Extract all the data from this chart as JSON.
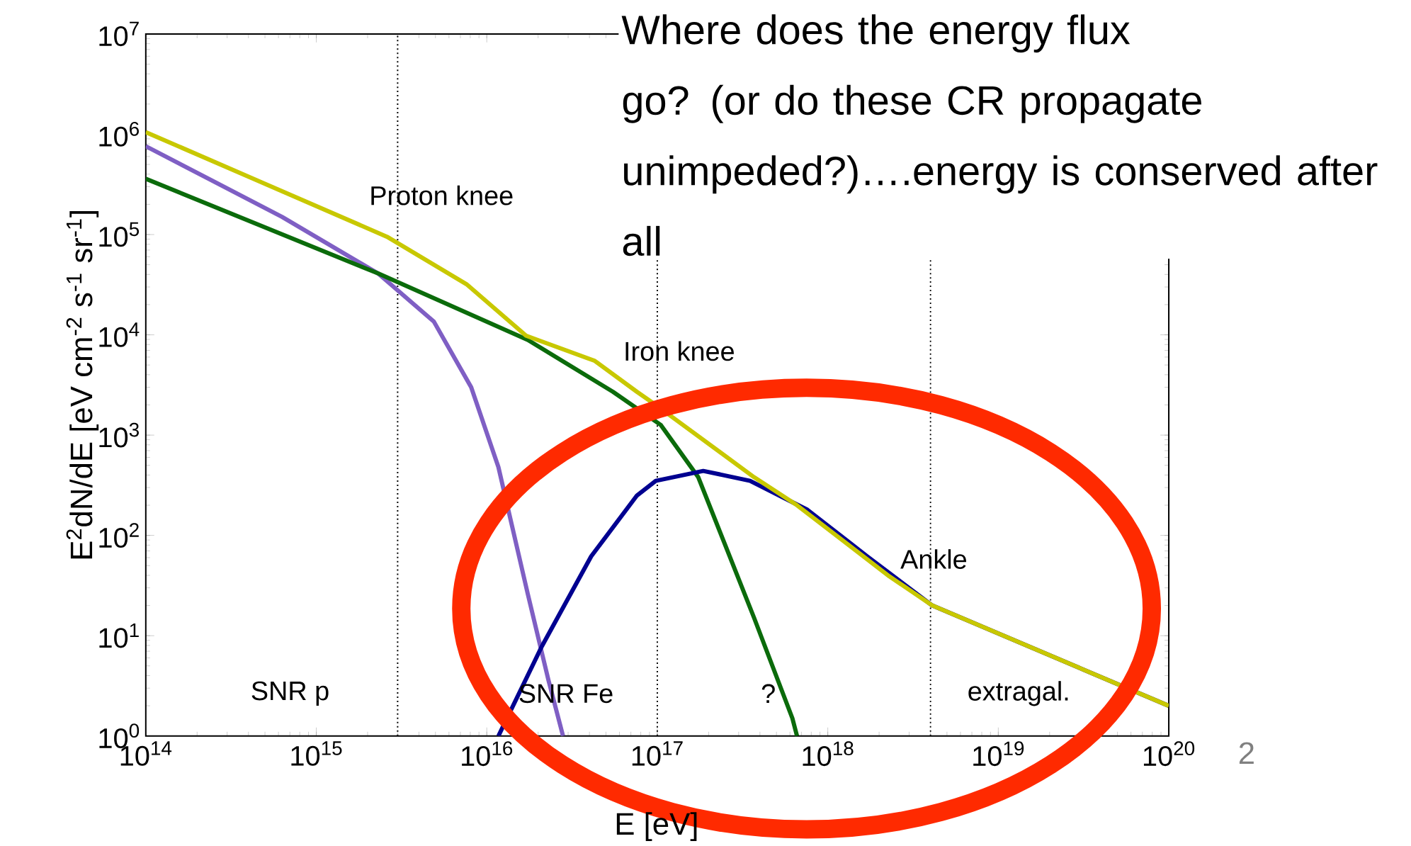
{
  "chart_data": {
    "type": "line",
    "log": "xy",
    "xlabel": "E [eV]",
    "ylabel": "E$^{2}$dN/dE [eV cm$^{-2}$ s$^{-1}$ sr$^{-1}$]",
    "xlim": [
      100000000000000.0,
      1e+20
    ],
    "ylim": [
      1,
      10000000.0
    ],
    "xticks": [
      {
        "value": 100000000000000.0,
        "label": "10$^{14}$"
      },
      {
        "value": 1000000000000000.0,
        "label": "10$^{15}$"
      },
      {
        "value": 1e+16,
        "label": "10$^{16}$"
      },
      {
        "value": 1e+17,
        "label": "10$^{17}$"
      },
      {
        "value": 1e+18,
        "label": "10$^{18}$"
      },
      {
        "value": 1e+19,
        "label": "10$^{19}$"
      },
      {
        "value": 1e+20,
        "label": "10$^{20}$"
      }
    ],
    "yticks": [
      {
        "value": 1,
        "label": "10$^{0}$"
      },
      {
        "value": 10,
        "label": "10$^{1}$"
      },
      {
        "value": 100,
        "label": "10$^{2}$"
      },
      {
        "value": 1000,
        "label": "10$^{3}$"
      },
      {
        "value": 10000,
        "label": "10$^{4}$"
      },
      {
        "value": 100000,
        "label": "10$^{5}$"
      },
      {
        "value": 1000000,
        "label": "10$^{6}$"
      },
      {
        "value": 10000000,
        "label": "10$^{7}$"
      }
    ],
    "grid": false,
    "marker": "none",
    "line_style": "solid",
    "series": [
      {
        "color": "#7f5fc4",
        "x": [
          100000000000000.0,
          630000000000000.0,
          2300000000000000.0,
          4900000000000000.0,
          8100000000000000.0,
          1.17e+16,
          1.74e+16,
          2.3e+16,
          2.8e+16
        ],
        "values": [
          760000,
          150000,
          41000,
          13500,
          3000,
          480,
          26,
          3.6,
          1
        ]
      },
      {
        "color": "#0b6b0b",
        "x": [
          100000000000000.0,
          2300000000000000.0,
          1.74e+16,
          5.5e+16,
          1.05e+17,
          1.74e+17,
          3.7e+17,
          6.2e+17,
          6.6e+17
        ],
        "values": [
          360000,
          41000,
          8900,
          2700,
          1260,
          380,
          15,
          1.5,
          1
        ]
      },
      {
        "color": "#000090",
        "x": [
          1.17e+16,
          2.1e+16,
          4.1e+16,
          7.6e+16,
          9.8e+16,
          1.86e+17,
          3.5e+17,
          7.6e+17,
          1.7e+18,
          4.1e+18,
          1e+20
        ],
        "values": [
          1,
          7.8,
          62,
          250,
          350,
          440,
          350,
          180,
          62,
          20,
          2
        ]
      },
      {
        "color": "#c8c800",
        "x": [
          100000000000000.0,
          2600000000000000.0,
          7600000000000000.0,
          1.7e+16,
          4.3e+16,
          7.6e+16,
          1e+17,
          3.7e+17,
          6.6e+17,
          2.3e+18,
          4.1e+18,
          1e+20
        ],
        "values": [
          1050000,
          95000,
          32000,
          9800,
          5500,
          2700,
          1950,
          380,
          200,
          39,
          20,
          2
        ]
      }
    ],
    "ref_lines": [
      {
        "axis": "x",
        "value": 3000000000000000.0,
        "line_style": "dotted",
        "color": "#000000"
      },
      {
        "axis": "x",
        "value": 1e+17,
        "line_style": "dotted",
        "color": "#000000"
      },
      {
        "axis": "x",
        "value": 4e+18,
        "line_style": "dotted",
        "color": "#000000"
      }
    ],
    "annotations": [
      "Proton knee",
      "Iron knee",
      "Ankle",
      "SNR p",
      "SNR Fe",
      "?",
      "extragal.",
      "Where does the energy flux go? (or do these CR propagate unimpeded?)….energy is conserved after all",
      "2"
    ]
  }
}
